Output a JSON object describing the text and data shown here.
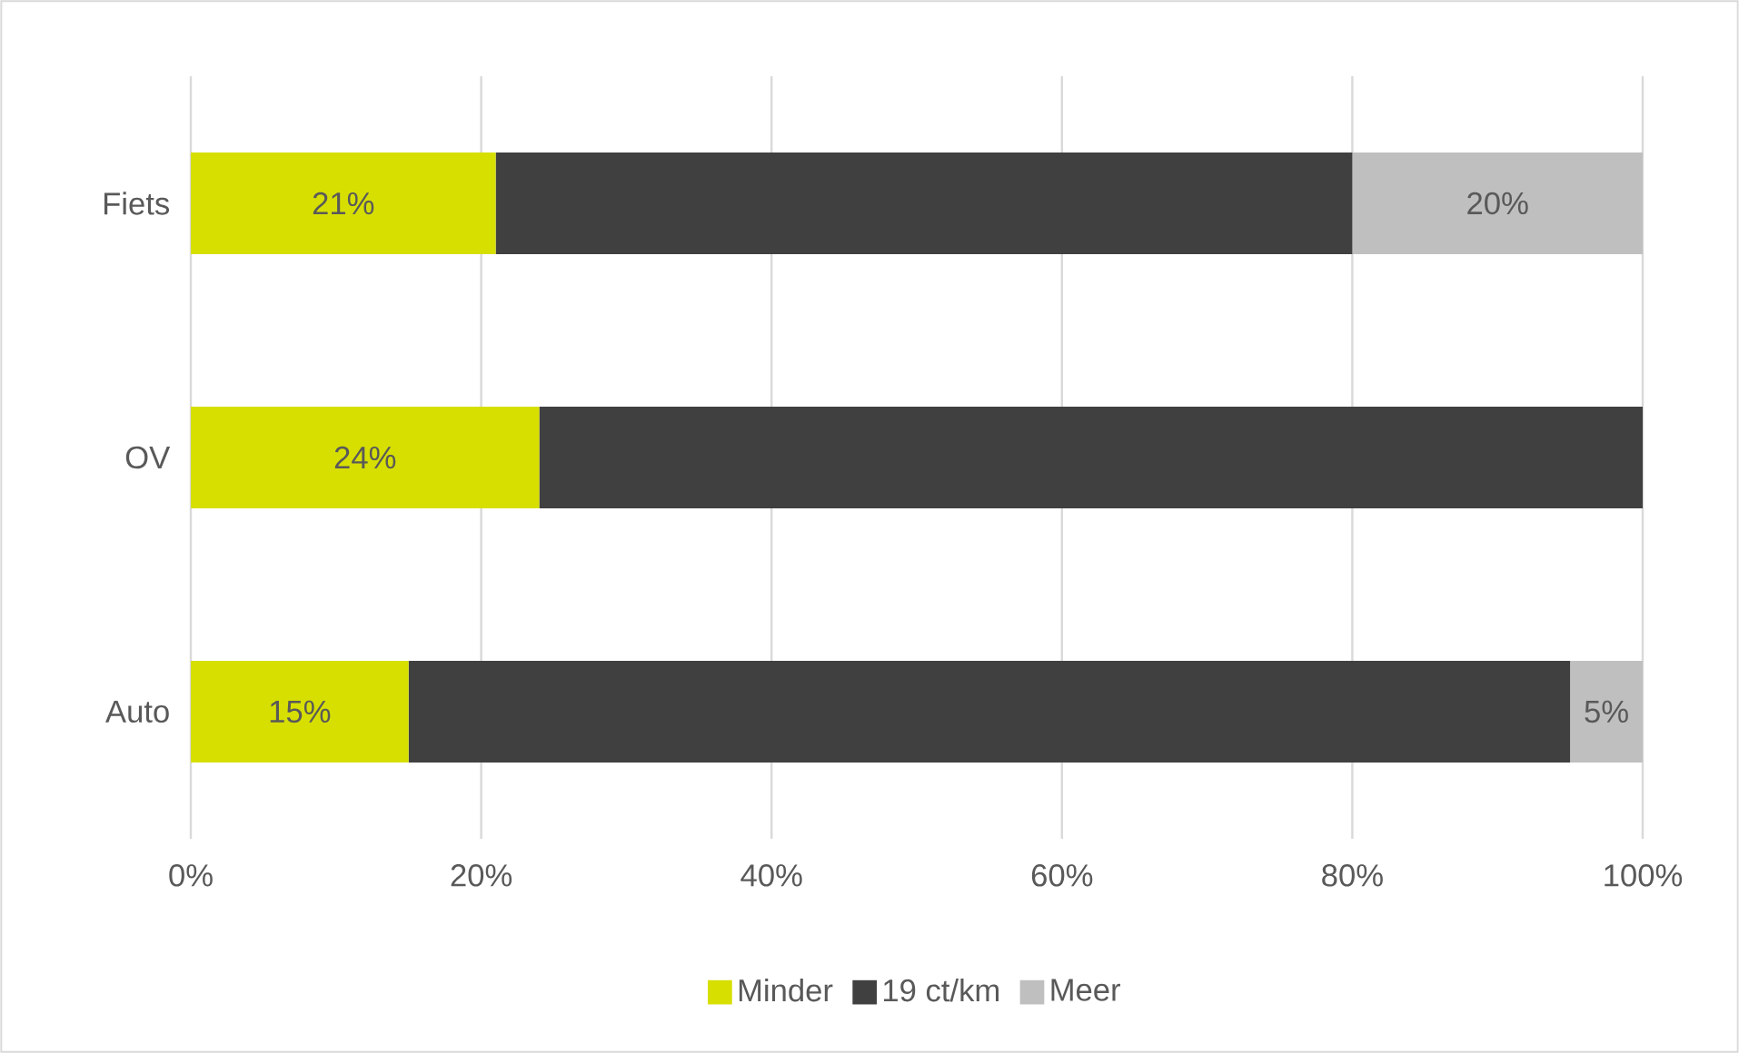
{
  "chart_data": {
    "type": "bar",
    "orientation": "horizontal",
    "stacked": true,
    "categories": [
      "Fiets",
      "OV",
      "Auto"
    ],
    "series": [
      {
        "name": "Minder",
        "color": "#d7df01",
        "values": [
          21,
          24,
          15
        ],
        "value_labels": [
          "21%",
          "24%",
          "15%"
        ]
      },
      {
        "name": "19 ct/km",
        "color": "#404040",
        "values": [
          59,
          76,
          80
        ],
        "value_labels": [
          null,
          null,
          null
        ]
      },
      {
        "name": "Meer",
        "color": "#bfbfbf",
        "values": [
          20,
          0,
          5
        ],
        "value_labels": [
          "20%",
          null,
          "5%"
        ]
      }
    ],
    "xlim": [
      0,
      100
    ],
    "xticks": [
      {
        "value": 0,
        "label": "0%"
      },
      {
        "value": 20,
        "label": "20%"
      },
      {
        "value": 40,
        "label": "40%"
      },
      {
        "value": 60,
        "label": "60%"
      },
      {
        "value": 80,
        "label": "80%"
      },
      {
        "value": 100,
        "label": "100%"
      }
    ],
    "grid": "x",
    "legend": "bottom"
  }
}
